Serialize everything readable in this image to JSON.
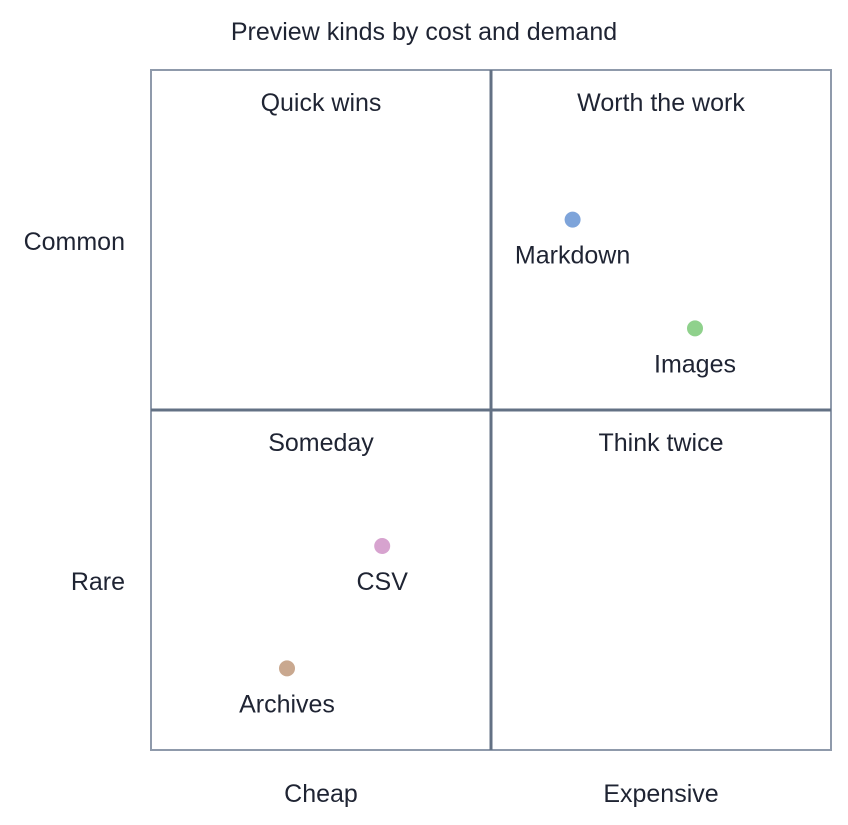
{
  "chart_data": {
    "type": "scatter",
    "title": "Preview kinds by cost and demand",
    "x_axis": {
      "categories": [
        "Cheap",
        "Expensive"
      ],
      "range": [
        0,
        1
      ]
    },
    "y_axis": {
      "categories": [
        "Rare",
        "Common"
      ],
      "range": [
        0,
        1
      ]
    },
    "quadrants": {
      "top_left": "Quick wins",
      "top_right": "Worth the work",
      "bottom_left": "Someday",
      "bottom_right": "Think twice"
    },
    "points": [
      {
        "label": "Markdown",
        "x": 0.62,
        "y": 0.78,
        "color": "#7ea4da"
      },
      {
        "label": "Images",
        "x": 0.8,
        "y": 0.62,
        "color": "#8fd18c"
      },
      {
        "label": "CSV",
        "x": 0.34,
        "y": 0.3,
        "color": "#d7a3cf"
      },
      {
        "label": "Archives",
        "x": 0.2,
        "y": 0.12,
        "color": "#c9a88f"
      }
    ],
    "grid": false,
    "legend": "none"
  }
}
